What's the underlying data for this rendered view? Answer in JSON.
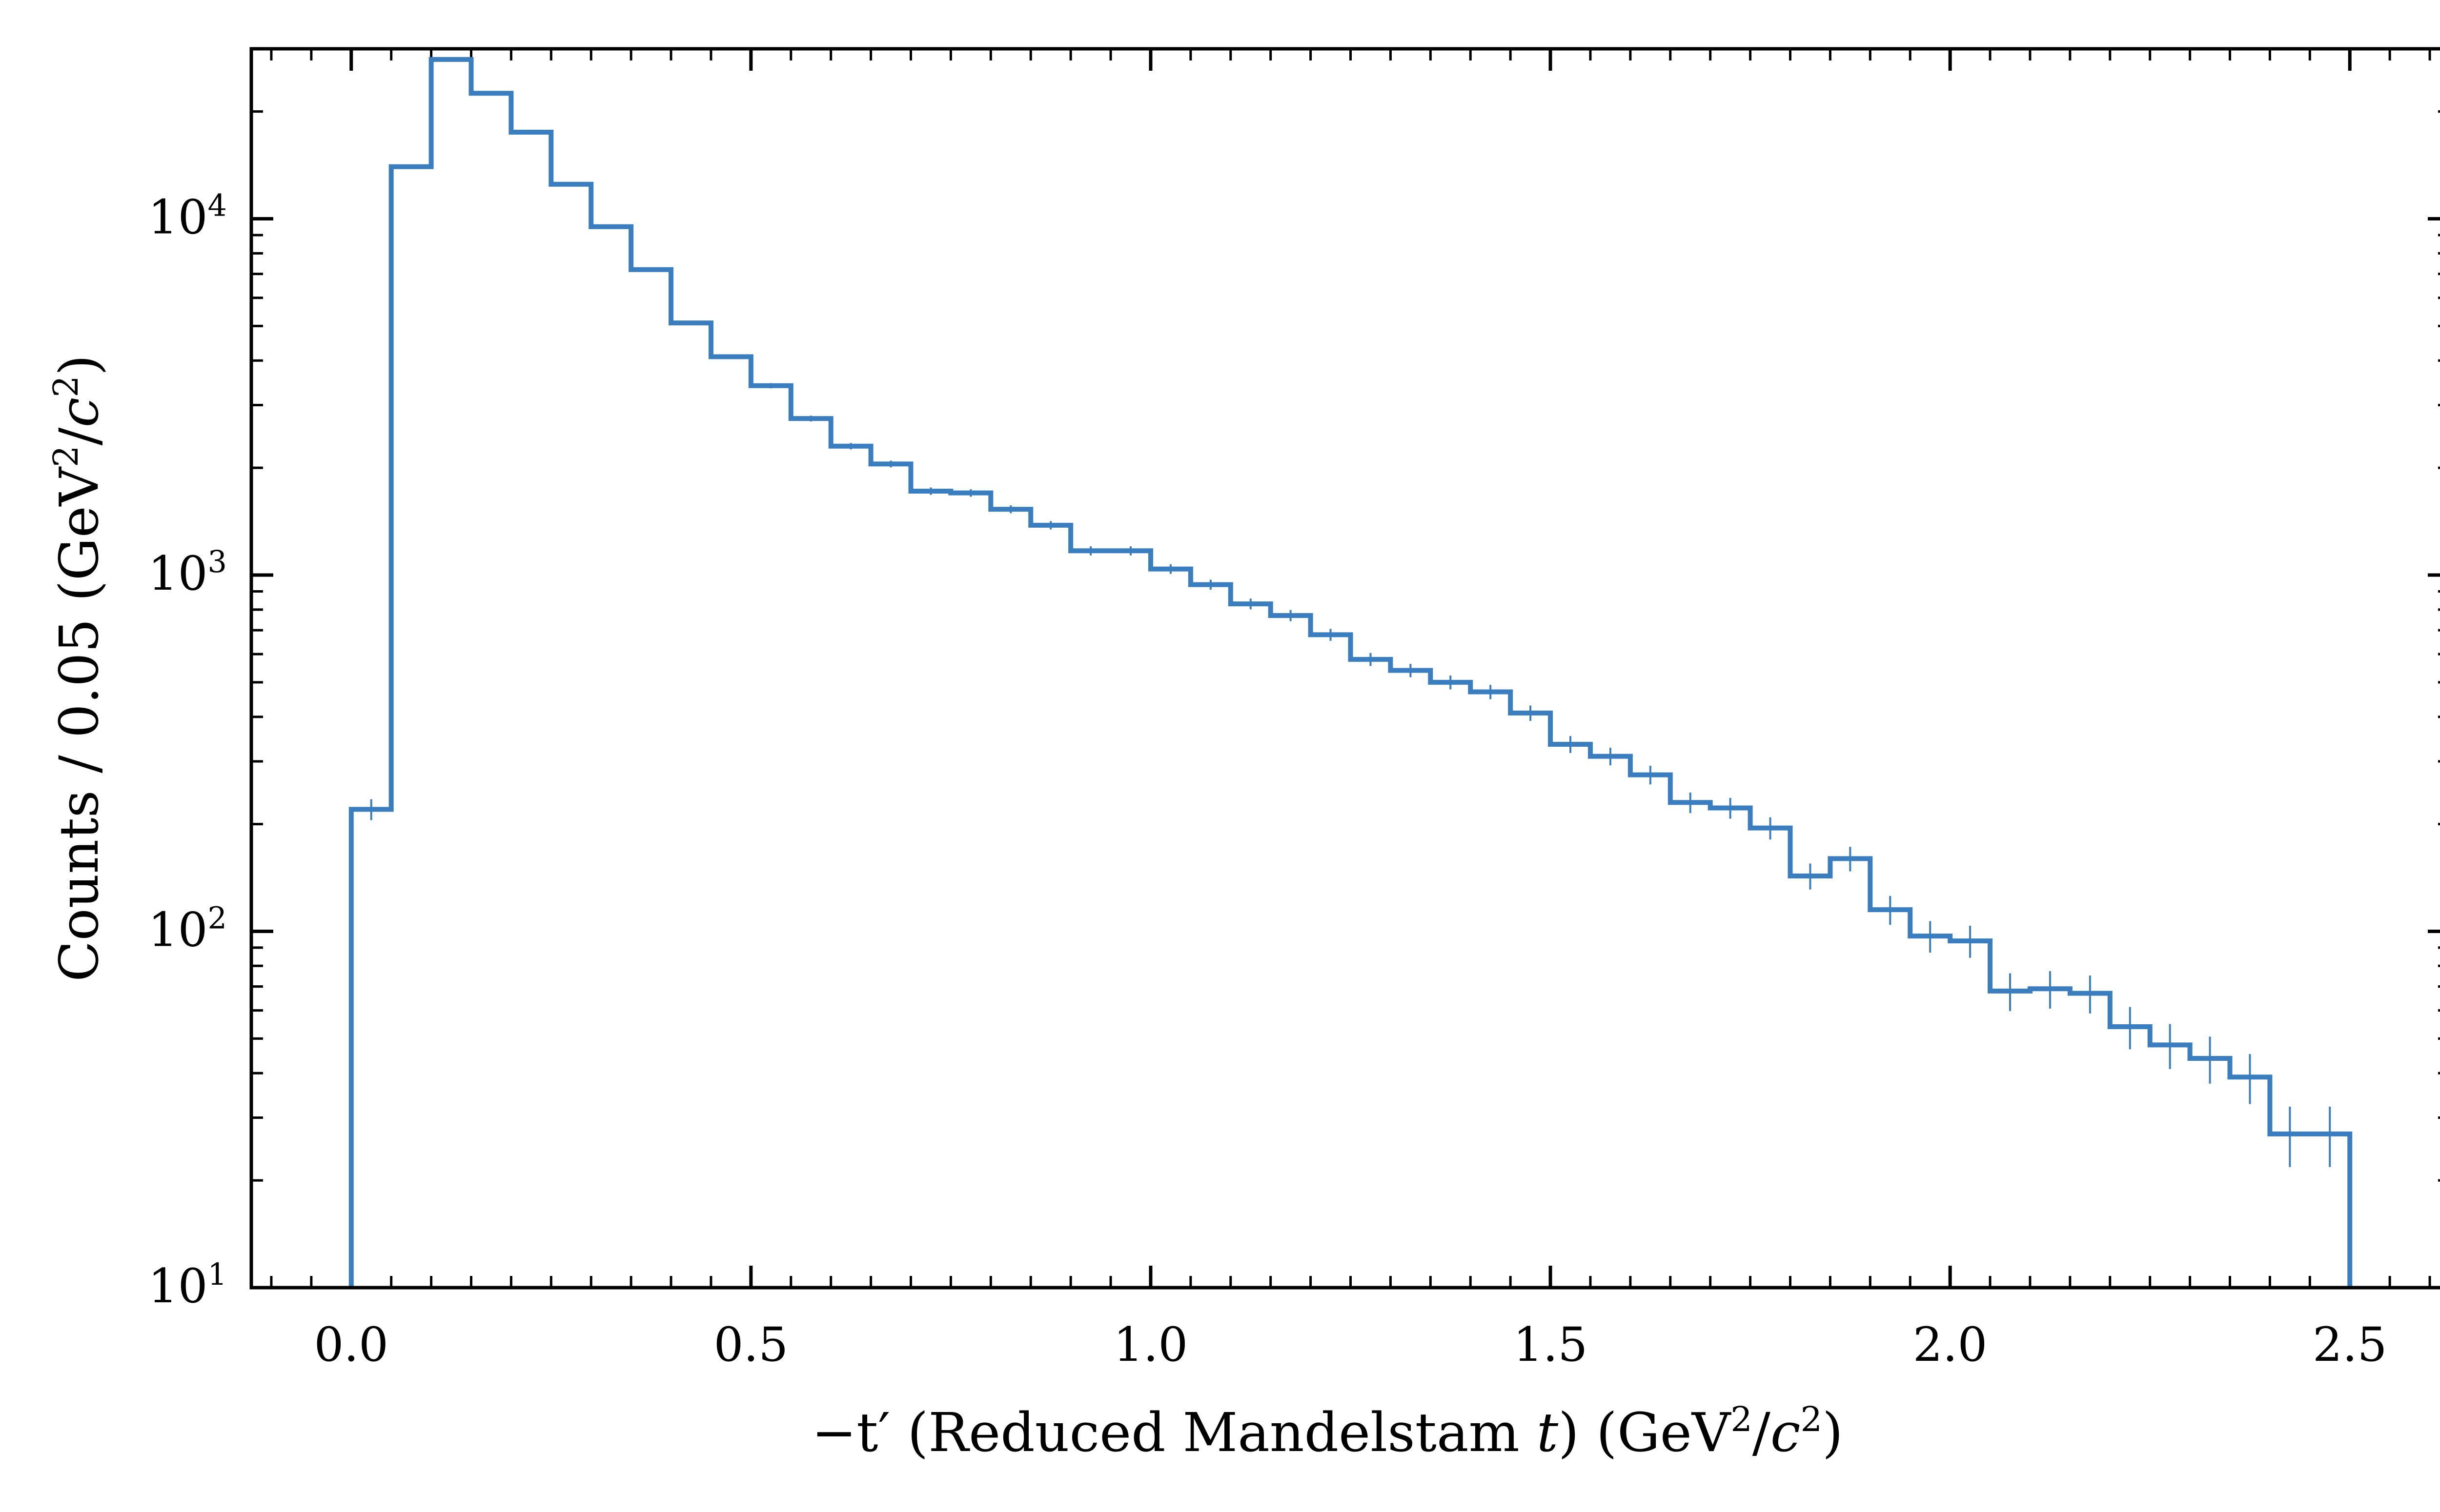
{
  "chart_data": {
    "type": "histogram",
    "bin_width": 0.05,
    "x_bins_start": 0.0,
    "counts": [
      220,
      14000,
      28000,
      22500,
      17500,
      12500,
      9500,
      7200,
      5100,
      4100,
      3400,
      2750,
      2300,
      2050,
      1720,
      1700,
      1530,
      1380,
      1170,
      1170,
      1040,
      940,
      830,
      770,
      680,
      580,
      540,
      500,
      470,
      410,
      335,
      310,
      275,
      230,
      222,
      195,
      143,
      160,
      115,
      97,
      94,
      68,
      69,
      67,
      54,
      48,
      44,
      39,
      27,
      27
    ],
    "errors_shown": true,
    "xlabel_prefix": "−t′ (Reduced Mandelstam ",
    "xlabel_t": "t",
    "xlabel_units_open": ") (GeV",
    "xlabel_units_mid": "/",
    "xlabel_units_c": "c",
    "xlabel_units_close": ")",
    "ylabel_main": "Counts / 0.05 (GeV",
    "ylabel_mid": "/",
    "ylabel_c": "c",
    "ylabel_close": ")",
    "superscript_two": "2",
    "xlim": [
      -0.125,
      2.625
    ],
    "ylim": [
      10,
      30000
    ],
    "y_scale": "log",
    "x_ticks": [
      0.0,
      0.5,
      1.0,
      1.5,
      2.0,
      2.5
    ],
    "x_tick_labels": [
      "0.0",
      "0.5",
      "1.0",
      "1.5",
      "2.0",
      "2.5"
    ],
    "y_ticks": [
      10,
      100,
      1000,
      10000
    ],
    "y_tick_base": "10",
    "y_tick_exponents": [
      "1",
      "2",
      "3",
      "4"
    ],
    "line_color": "#3a7ebf",
    "axis_color": "#000000"
  }
}
